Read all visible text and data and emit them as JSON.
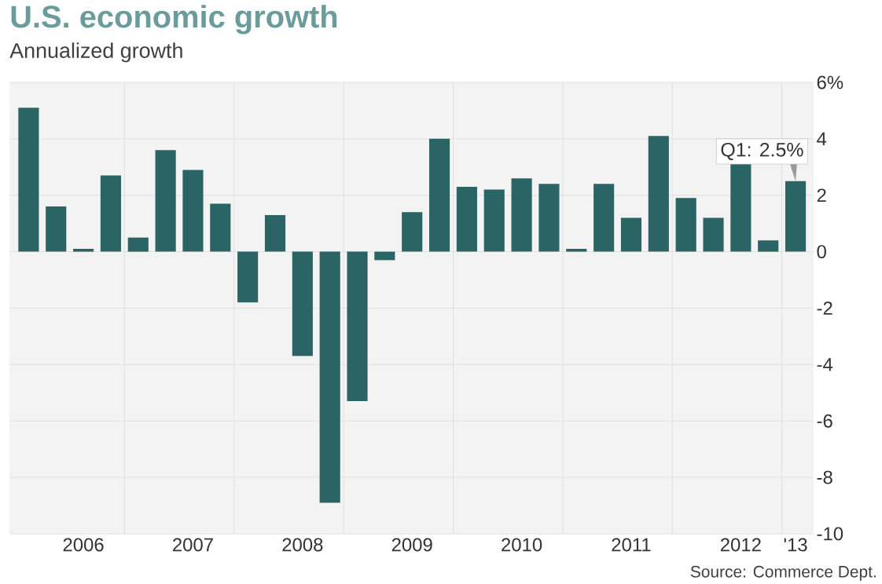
{
  "chart_data": {
    "type": "bar",
    "title": "U.S. economic growth",
    "subtitle": "Annualized growth",
    "categories": [
      null,
      null,
      "2006",
      null,
      null,
      null,
      "2007",
      null,
      null,
      null,
      "2008",
      null,
      null,
      null,
      "2009",
      null,
      null,
      null,
      "2010",
      null,
      null,
      null,
      "2011",
      null,
      null,
      null,
      "2012",
      null,
      "'13"
    ],
    "values": [
      5.1,
      1.6,
      0.1,
      2.7,
      0.5,
      3.6,
      2.9,
      1.7,
      -1.8,
      1.3,
      -3.7,
      -8.9,
      -5.3,
      -0.3,
      1.4,
      4.0,
      2.3,
      2.2,
      2.6,
      2.4,
      0.1,
      2.4,
      1.2,
      4.1,
      1.9,
      1.2,
      3.1,
      0.4,
      2.5
    ],
    "color": "#2b6464",
    "ylim": [
      -10,
      6
    ],
    "yticks": [
      -10,
      -8,
      -6,
      -4,
      -2,
      0,
      2,
      4,
      {
        "value": 6,
        "label": "6%"
      }
    ],
    "grid": true,
    "annotations": [
      {
        "text": "Q1: 2.5%",
        "x": "'13",
        "y": 2.5
      },
      "Source: Commerce Dept."
    ]
  }
}
